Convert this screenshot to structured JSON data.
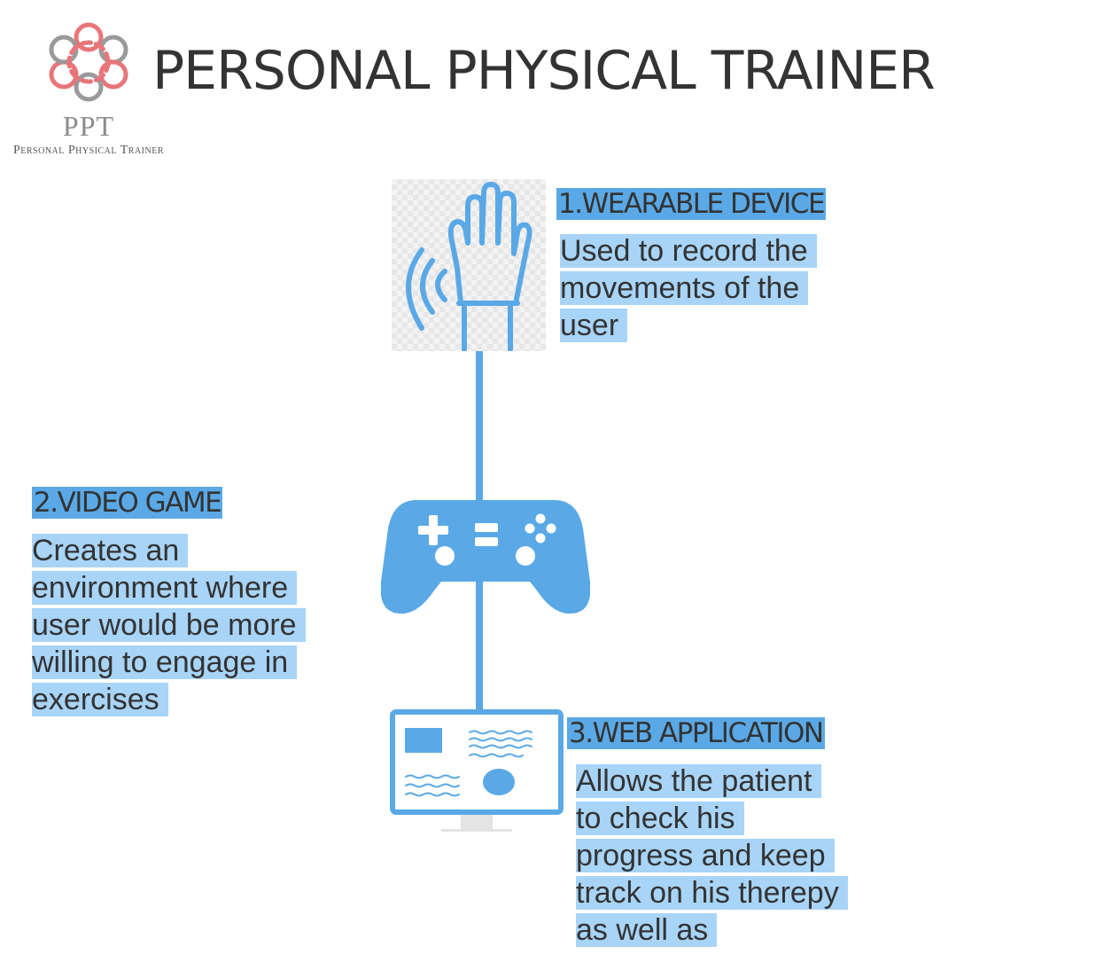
{
  "header": {
    "title": "PERSONAL PHYSICAL TRAINER",
    "logo_abbr": "PPT",
    "logo_name": "Personal Physical Trainer"
  },
  "components": [
    {
      "heading": "1.WEARABLE DEVICE",
      "icon": "wearable-hand-icon",
      "lines": [
        "Used to record the",
        "movements of the",
        "user"
      ]
    },
    {
      "heading": "2.VIDEO GAME",
      "icon": "gamepad-icon",
      "lines": [
        "Creates an",
        "environment where",
        "user would be more",
        "willing to engage in",
        "exercises"
      ]
    },
    {
      "heading": "3.WEB APPLICATION",
      "icon": "monitor-icon",
      "lines": [
        "Allows the patient",
        "to check his",
        "progress and keep",
        "track on his therepy",
        "as well as"
      ]
    }
  ],
  "colors": {
    "icon_blue": "#5aa9e6",
    "heading_highlight": "#5aa9e6",
    "text_highlight": "#a8d4f7",
    "logo_red": "#e8757a",
    "logo_gray": "#8c8c8c",
    "text": "#333333"
  }
}
